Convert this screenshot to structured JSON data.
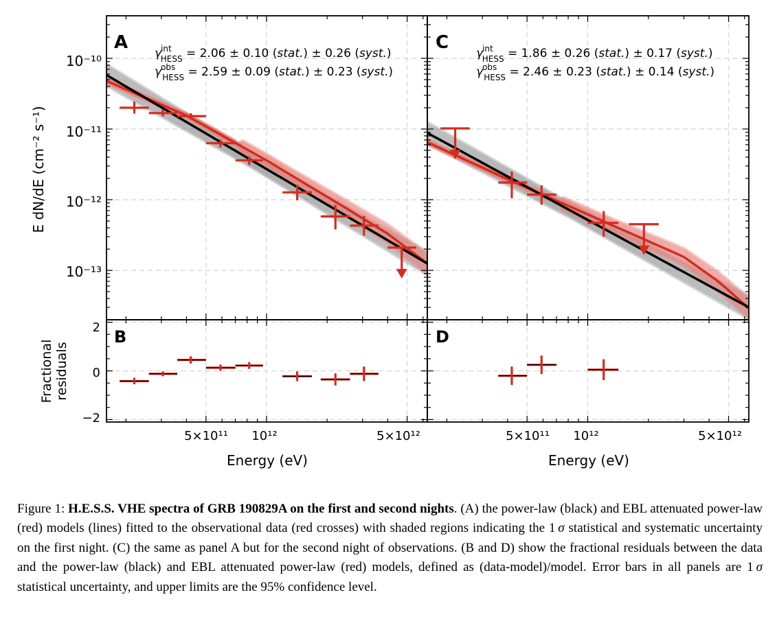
{
  "panels": {
    "A": {
      "label": "A"
    },
    "B": {
      "label": "B"
    },
    "C": {
      "label": "C"
    },
    "D": {
      "label": "D"
    }
  },
  "axes": {
    "x_label": "Energy (eV)",
    "y_label_top": "E dN/dE (cm⁻² s⁻¹)",
    "y_label_bottom_line1": "Fractional",
    "y_label_bottom_line2": "residuals",
    "x_ticks": [
      "5×10¹¹",
      "10¹²",
      "5×10¹²"
    ],
    "y_ticks_top": [
      "10⁻¹⁰",
      "10⁻¹¹",
      "10⁻¹²",
      "10⁻¹³"
    ],
    "y_ticks_bottom": [
      "2",
      "0",
      "−2"
    ]
  },
  "annotations": {
    "A": {
      "int_prefix": "γ",
      "int_sup": "int",
      "int_sub": "HESS",
      "int_value": " = 2.06 ± 0.10 (",
      "stat": "stat.",
      "mid": ") ± 0.26 (",
      "syst": "syst.",
      "end": ")",
      "obs_sup": "obs",
      "obs_value": " = 2.59 ± 0.09 (",
      "obs_mid": ") ± 0.23 ("
    },
    "C": {
      "int_prefix": "γ",
      "int_sup": "int",
      "int_sub": "HESS",
      "int_value": " = 1.86 ± 0.26 (",
      "stat": "stat.",
      "mid": ") ± 0.17 (",
      "syst": "syst.",
      "end": ")",
      "obs_sup": "obs",
      "obs_value": " = 2.46 ± 0.23 (",
      "obs_mid": ") ± 0.14 ("
    }
  },
  "caption": {
    "prefix": "Figure 1: ",
    "title": "H.E.S.S. VHE spectra of GRB 190829A on the first and second nights",
    "text_1": ". (A) the power-law (black) and EBL attenuated power-law (red) models (lines) fitted to the observational data (red crosses) with shaded regions indicating the 1 ",
    "sigma": "σ",
    "text_2": " statistical and systematic uncertainty on the first night.  (C) the same as panel A but for the second night of observations. (B and D) show the fractional residuals between the data and the power-law (black) and EBL attenuated power-law (red) models, defined as (data-model)/model.  Error bars in all panels are 1 ",
    "text_3": " statistical uncertainty, and upper limits are the 95% confidence level."
  },
  "colors": {
    "data_red": "#d22d21",
    "ebl_band": "#e8827a",
    "pl_band": "#8a8a8a",
    "pl_line": "#000000",
    "grid": "#d9d9d9"
  },
  "chart_data": [
    {
      "panel": "A",
      "type": "scatter",
      "x_scale": "log",
      "y_scale": "log",
      "xlim": [
        160000000000.0,
        6300000000000.0
      ],
      "ylim": [
        2e-14,
        4e-10
      ],
      "xlabel": "Energy (eV)",
      "ylabel": "E dN/dE (cm⁻² s⁻¹)",
      "grid": true,
      "points": [
        {
          "x": 220000000000.0,
          "xlo": 186000000000.0,
          "xhi": 260000000000.0,
          "y": 2e-11,
          "ylo": 1.65e-11,
          "yhi": 2.45e-11,
          "upper_limit": false
        },
        {
          "x": 305000000000.0,
          "xlo": 260000000000.0,
          "xhi": 360000000000.0,
          "y": 1.68e-11,
          "ylo": 1.5e-11,
          "yhi": 1.88e-11,
          "upper_limit": false
        },
        {
          "x": 420000000000.0,
          "xlo": 360000000000.0,
          "xhi": 500000000000.0,
          "y": 1.52e-11,
          "ylo": 1.37e-11,
          "yhi": 1.67e-11,
          "upper_limit": false
        },
        {
          "x": 590000000000.0,
          "xlo": 500000000000.0,
          "xhi": 700000000000.0,
          "y": 6.3e-12,
          "ylo": 5.5e-12,
          "yhi": 7.1e-12,
          "upper_limit": false
        },
        {
          "x": 820000000000.0,
          "xlo": 700000000000.0,
          "xhi": 960000000000.0,
          "y": 3.6e-12,
          "ylo": 3.1e-12,
          "yhi": 4.1e-12,
          "upper_limit": false
        },
        {
          "x": 1420000000000.0,
          "xlo": 1200000000000.0,
          "xhi": 1680000000000.0,
          "y": 1.27e-12,
          "ylo": 9.8e-13,
          "yhi": 1.62e-12,
          "upper_limit": false
        },
        {
          "x": 2200000000000.0,
          "xlo": 1860000000000.0,
          "xhi": 2600000000000.0,
          "y": 5.8e-13,
          "ylo": 3.8e-13,
          "yhi": 8.4e-13,
          "upper_limit": false
        },
        {
          "x": 3050000000000.0,
          "xlo": 2600000000000.0,
          "xhi": 3600000000000.0,
          "y": 4.3e-13,
          "ylo": 3.1e-13,
          "yhi": 5.9e-13,
          "upper_limit": false
        },
        {
          "x": 4700000000000.0,
          "xlo": 4000000000000.0,
          "xhi": 5550000000000.0,
          "y": 2.1e-13,
          "upper_limit": true
        }
      ],
      "models": {
        "power_law": {
          "color": "black",
          "x": [
            160000000000.0,
            6300000000000.0
          ],
          "y": [
            5.8e-11,
            1.25e-13
          ]
        },
        "ebl_power_law": {
          "color": "red",
          "x": [
            160000000000.0,
            400000000000.0,
            1000000000000.0,
            2500000000000.0,
            4000000000000.0,
            6300000000000.0
          ],
          "y": [
            4.8e-11,
            1.55e-11,
            3.6e-12,
            7.5e-13,
            3.3e-13,
            1.25e-13
          ]
        }
      }
    },
    {
      "panel": "B",
      "type": "scatter",
      "x_scale": "log",
      "xlim": [
        160000000000.0,
        6300000000000.0
      ],
      "ylim": [
        -2.1,
        2.1
      ],
      "ylabel": "Fractional residuals",
      "grid": true,
      "points": [
        {
          "x": 220000000000.0,
          "xlo": 186000000000.0,
          "xhi": 260000000000.0,
          "y": -0.42,
          "ylo": -0.55,
          "yhi": -0.28
        },
        {
          "x": 305000000000.0,
          "xlo": 260000000000.0,
          "xhi": 360000000000.0,
          "y": -0.12,
          "ylo": -0.22,
          "yhi": -0.02
        },
        {
          "x": 420000000000.0,
          "xlo": 360000000000.0,
          "xhi": 500000000000.0,
          "y": 0.45,
          "ylo": 0.3,
          "yhi": 0.6
        },
        {
          "x": 590000000000.0,
          "xlo": 500000000000.0,
          "xhi": 700000000000.0,
          "y": 0.13,
          "ylo": 0.0,
          "yhi": 0.26
        },
        {
          "x": 820000000000.0,
          "xlo": 700000000000.0,
          "xhi": 960000000000.0,
          "y": 0.22,
          "ylo": 0.08,
          "yhi": 0.36
        },
        {
          "x": 1420000000000.0,
          "xlo": 1200000000000.0,
          "xhi": 1680000000000.0,
          "y": -0.22,
          "ylo": -0.42,
          "yhi": -0.02
        },
        {
          "x": 2200000000000.0,
          "xlo": 1860000000000.0,
          "xhi": 2600000000000.0,
          "y": -0.35,
          "ylo": -0.6,
          "yhi": -0.1
        },
        {
          "x": 3050000000000.0,
          "xlo": 2600000000000.0,
          "xhi": 3600000000000.0,
          "y": -0.12,
          "ylo": -0.42,
          "yhi": 0.18
        }
      ]
    },
    {
      "panel": "C",
      "type": "scatter",
      "x_scale": "log",
      "y_scale": "log",
      "xlim": [
        160000000000.0,
        6300000000000.0
      ],
      "ylim": [
        2e-14,
        4e-10
      ],
      "xlabel": "Energy (eV)",
      "grid": true,
      "points": [
        {
          "x": 220000000000.0,
          "xlo": 186000000000.0,
          "xhi": 260000000000.0,
          "y": 1.02e-11,
          "upper_limit": true
        },
        {
          "x": 420000000000.0,
          "xlo": 360000000000.0,
          "xhi": 500000000000.0,
          "y": 1.75e-12,
          "ylo": 1.05e-12,
          "yhi": 2.5e-12,
          "upper_limit": false
        },
        {
          "x": 590000000000.0,
          "xlo": 500000000000.0,
          "xhi": 700000000000.0,
          "y": 1.18e-12,
          "ylo": 8.5e-13,
          "yhi": 1.6e-12,
          "upper_limit": false
        },
        {
          "x": 1200000000000.0,
          "xlo": 1000000000000.0,
          "xhi": 1420000000000.0,
          "y": 4.7e-13,
          "ylo": 3e-13,
          "yhi": 6.9e-13,
          "upper_limit": false
        },
        {
          "x": 1900000000000.0,
          "xlo": 1600000000000.0,
          "xhi": 2250000000000.0,
          "y": 4.5e-13,
          "upper_limit": true
        }
      ],
      "models": {
        "power_law": {
          "color": "black",
          "x": [
            160000000000.0,
            6300000000000.0
          ],
          "y": [
            8.8e-12,
            3e-14
          ]
        },
        "ebl_power_law": {
          "color": "red",
          "x": [
            160000000000.0,
            400000000000.0,
            1000000000000.0,
            3000000000000.0,
            4500000000000.0,
            6300000000000.0
          ],
          "y": [
            6.5e-12,
            1.95e-12,
            6.2e-13,
            1.55e-13,
            6.8e-14,
            2.9e-14
          ]
        }
      }
    },
    {
      "panel": "D",
      "type": "scatter",
      "x_scale": "log",
      "xlim": [
        160000000000.0,
        6300000000000.0
      ],
      "ylim": [
        -2.1,
        2.1
      ],
      "xlabel": "Energy (eV)",
      "grid": true,
      "points": [
        {
          "x": 420000000000.0,
          "xlo": 360000000000.0,
          "xhi": 500000000000.0,
          "y": -0.2,
          "ylo": -0.58,
          "yhi": 0.18
        },
        {
          "x": 590000000000.0,
          "xlo": 500000000000.0,
          "xhi": 700000000000.0,
          "y": 0.25,
          "ylo": -0.13,
          "yhi": 0.63
        },
        {
          "x": 1200000000000.0,
          "xlo": 1000000000000.0,
          "xhi": 1420000000000.0,
          "y": 0.05,
          "ylo": -0.38,
          "yhi": 0.48
        }
      ]
    }
  ]
}
